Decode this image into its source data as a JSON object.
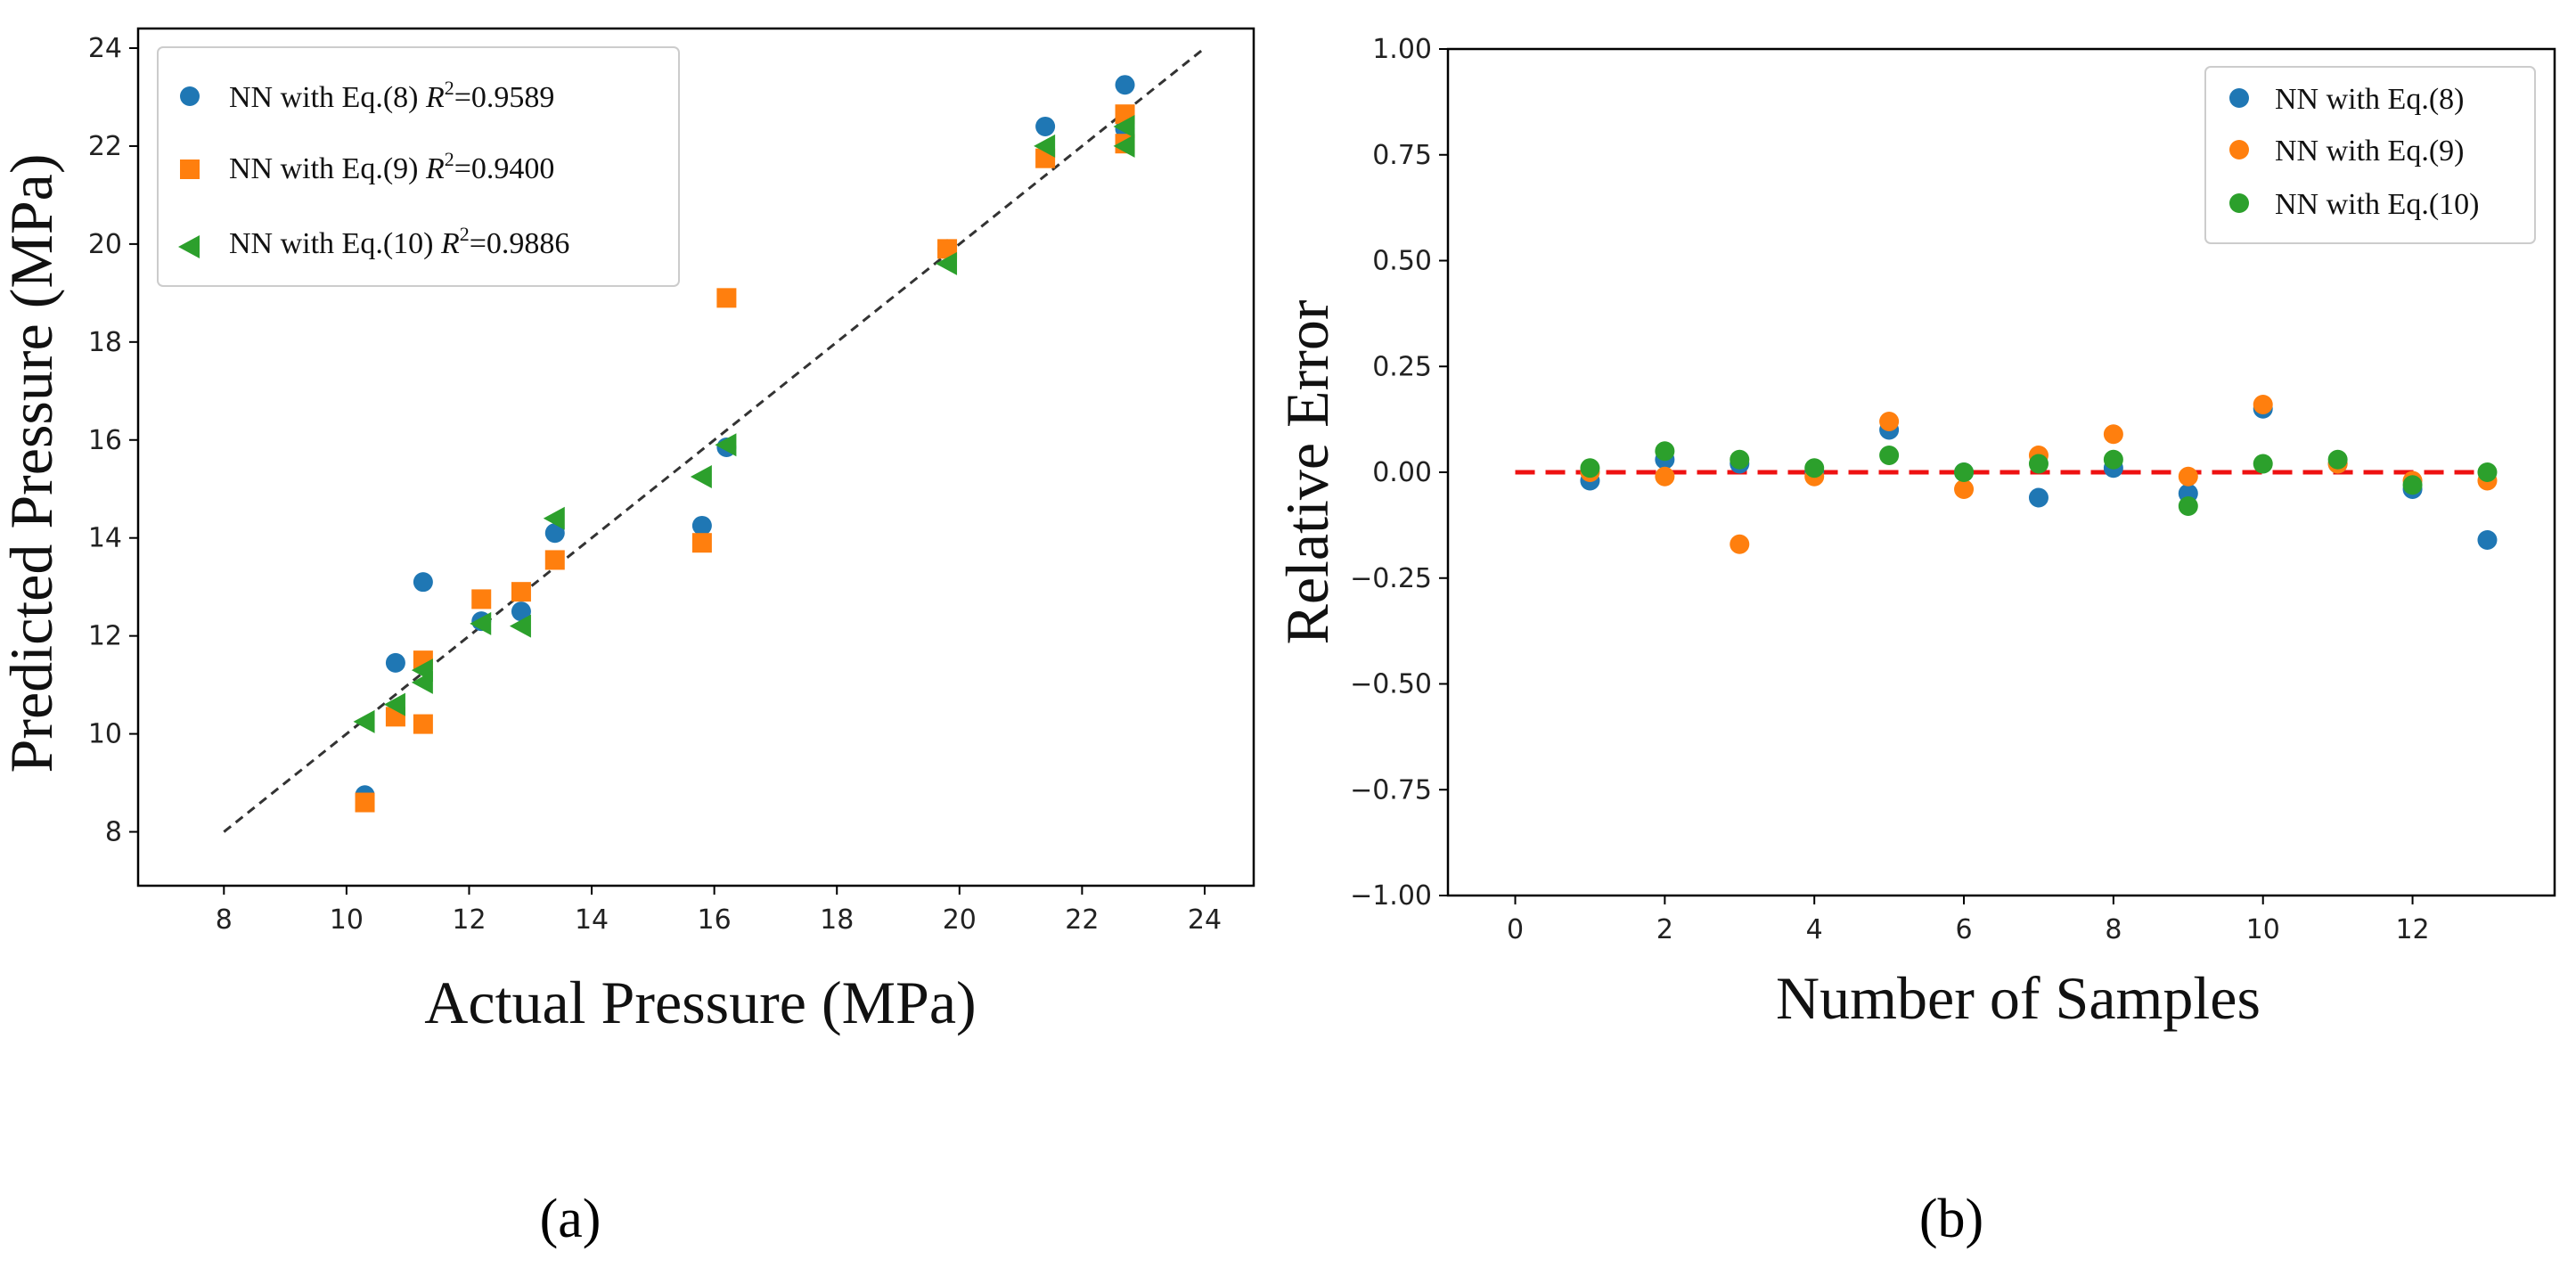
{
  "chart_data": [
    {
      "type": "scatter",
      "panel_label": "(a)",
      "xlabel": "Actual Pressure (MPa)",
      "ylabel": "Predicted Pressure (MPa)",
      "xlim": [
        6.6,
        24.8
      ],
      "ylim": [
        6.9,
        24.4
      ],
      "xticks": [
        8,
        10,
        12,
        14,
        16,
        18,
        20,
        22,
        24
      ],
      "yticks": [
        8,
        10,
        12,
        14,
        16,
        18,
        20,
        22,
        24
      ],
      "reference_line": {
        "style": "dashed",
        "color": "#333333",
        "from": [
          8,
          8
        ],
        "to": [
          24,
          24
        ]
      },
      "legend_position": "top-left",
      "series": [
        {
          "name": "NN with Eq.(8)",
          "r2_label": "R",
          "r2_value": "=0.9589",
          "marker": "circle",
          "color": "#1f77b4",
          "points": [
            [
              10.3,
              8.75
            ],
            [
              10.8,
              11.45
            ],
            [
              11.25,
              13.1
            ],
            [
              12.2,
              12.3
            ],
            [
              12.85,
              12.5
            ],
            [
              13.4,
              14.1
            ],
            [
              15.8,
              14.25
            ],
            [
              16.2,
              15.85
            ],
            [
              19.8,
              19.9
            ],
            [
              21.4,
              22.4
            ],
            [
              22.7,
              23.25
            ],
            [
              22.7,
              22.35
            ]
          ]
        },
        {
          "name": "NN with Eq.(9)",
          "r2_label": "R",
          "r2_value": "=0.9400",
          "marker": "square",
          "color": "#ff7f0e",
          "points": [
            [
              10.3,
              8.6
            ],
            [
              10.8,
              10.35
            ],
            [
              11.25,
              11.5
            ],
            [
              11.25,
              10.2
            ],
            [
              12.2,
              12.75
            ],
            [
              12.85,
              12.9
            ],
            [
              13.4,
              13.55
            ],
            [
              15.8,
              13.9
            ],
            [
              16.2,
              18.9
            ],
            [
              19.8,
              19.9
            ],
            [
              21.4,
              21.75
            ],
            [
              22.7,
              22.65
            ],
            [
              22.7,
              22.05
            ]
          ]
        },
        {
          "name": "NN with Eq.(10)",
          "r2_label": "R",
          "r2_value": "=0.9886",
          "marker": "triangle-left",
          "color": "#2ca02c",
          "points": [
            [
              10.3,
              10.25
            ],
            [
              10.8,
              10.6
            ],
            [
              11.25,
              11.05
            ],
            [
              11.25,
              11.3
            ],
            [
              12.2,
              12.25
            ],
            [
              12.85,
              12.2
            ],
            [
              13.4,
              14.4
            ],
            [
              15.8,
              15.25
            ],
            [
              16.2,
              15.9
            ],
            [
              19.8,
              19.6
            ],
            [
              21.4,
              22.0
            ],
            [
              22.7,
              22.4
            ],
            [
              22.7,
              22.0
            ]
          ]
        }
      ]
    },
    {
      "type": "scatter",
      "panel_label": "(b)",
      "xlabel": "Number of Samples",
      "ylabel": "Relative Error",
      "xlim": [
        -0.9,
        13.9
      ],
      "ylim": [
        -1.0,
        1.0
      ],
      "xticks": [
        0,
        2,
        4,
        6,
        8,
        10,
        12
      ],
      "yticks": [
        1.0,
        0.75,
        0.5,
        0.25,
        0.0,
        -0.25,
        -0.5,
        -0.75,
        -1.0
      ],
      "ytick_labels": [
        "1.00",
        "0.75",
        "0.50",
        "0.25",
        "0.00",
        "−0.25",
        "−0.50",
        "−0.75",
        "−1.00"
      ],
      "reference_line": {
        "style": "dashed",
        "color": "#ee1111",
        "from": [
          0,
          0.0
        ],
        "to": [
          13,
          0.0
        ]
      },
      "legend_position": "top-right",
      "x": [
        1,
        2,
        3,
        4,
        5,
        6,
        7,
        8,
        9,
        10,
        11,
        12,
        13
      ],
      "series": [
        {
          "name": "NN with Eq.(8)",
          "marker": "circle",
          "color": "#1f77b4",
          "values": [
            -0.02,
            0.03,
            0.02,
            0.0,
            0.1,
            0.0,
            -0.06,
            0.01,
            -0.05,
            0.15,
            0.02,
            -0.04,
            -0.16
          ]
        },
        {
          "name": "NN with Eq.(9)",
          "marker": "circle",
          "color": "#ff7f0e",
          "values": [
            0.0,
            -0.01,
            -0.17,
            -0.01,
            0.12,
            -0.04,
            0.04,
            0.09,
            -0.01,
            0.16,
            0.02,
            -0.02,
            -0.02
          ]
        },
        {
          "name": "NN with Eq.(10)",
          "marker": "circle",
          "color": "#2ca02c",
          "values": [
            0.01,
            0.05,
            0.03,
            0.01,
            0.04,
            0.0,
            0.02,
            0.03,
            -0.08,
            0.02,
            0.03,
            -0.03,
            0.0
          ]
        }
      ]
    }
  ]
}
